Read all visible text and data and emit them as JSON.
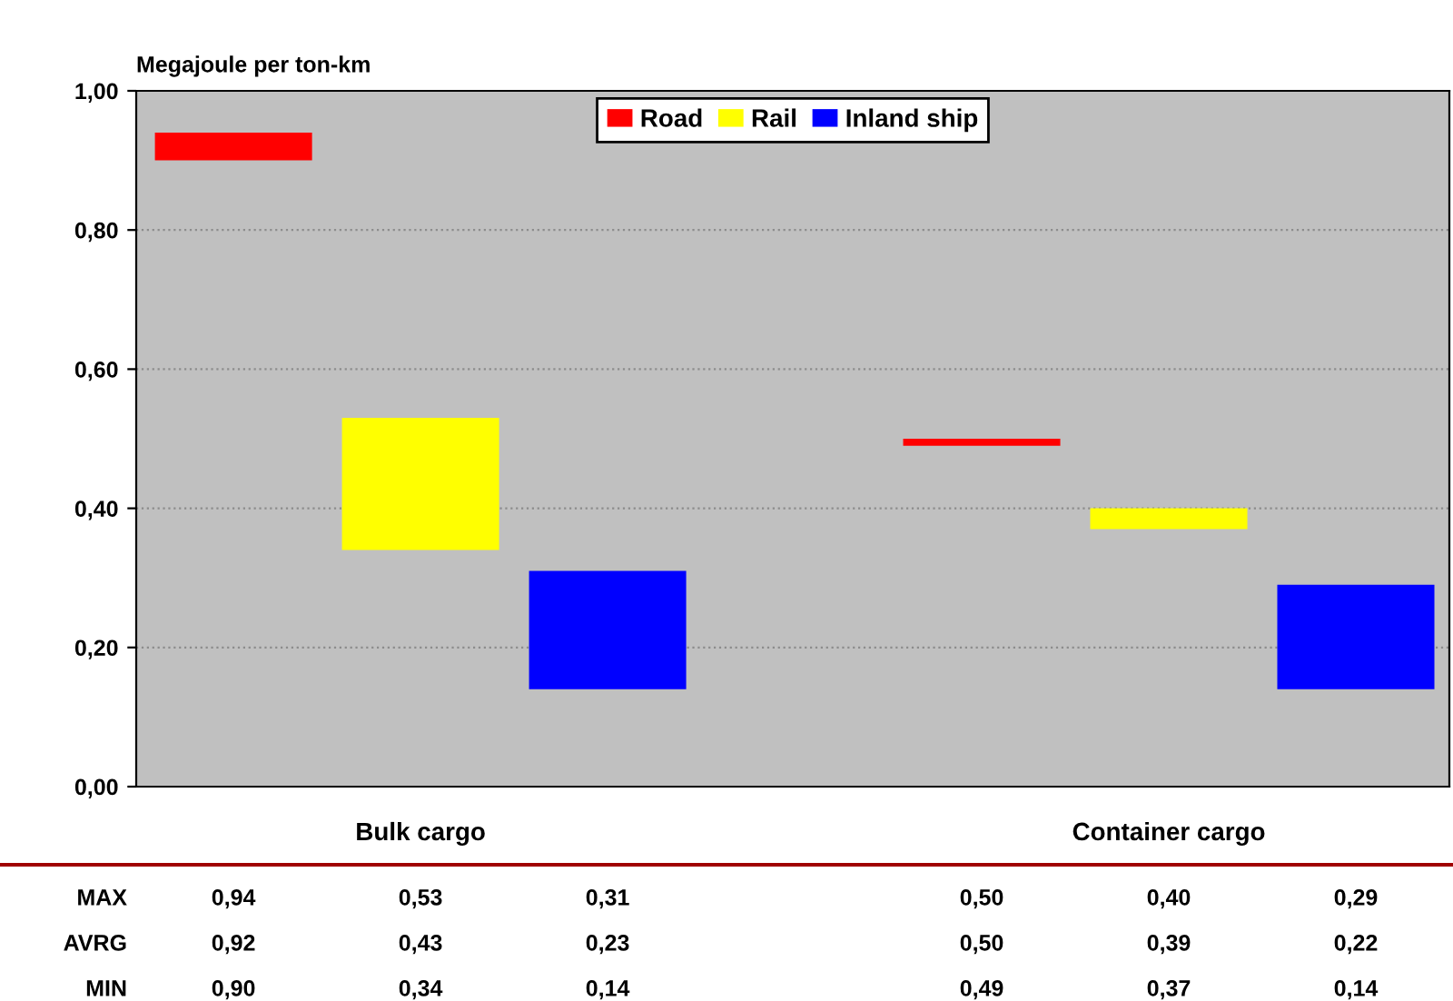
{
  "chart_data": {
    "type": "bar",
    "ylabel": "Megajoule per ton-km",
    "categories": [
      "Bulk cargo",
      "Container cargo"
    ],
    "series": [
      {
        "name": "Road",
        "color": "#ff0000",
        "base": [
          0.9,
          0.49
        ],
        "values": [
          0.04,
          0.01
        ]
      },
      {
        "name": "Rail",
        "color": "#ffff00",
        "base": [
          0.34,
          0.37
        ],
        "values": [
          0.19,
          0.03
        ]
      },
      {
        "name": "Inland ship",
        "color": "#0000ff",
        "base": [
          0.14,
          0.14
        ],
        "values": [
          0.17,
          0.15
        ]
      }
    ],
    "ylim": [
      0,
      1
    ],
    "yticks": [
      {
        "value": 0,
        "label": "0,00"
      },
      {
        "value": 0.2,
        "label": "0,20"
      },
      {
        "value": 0.4,
        "label": "0,40"
      },
      {
        "value": 0.6,
        "label": "0,60"
      },
      {
        "value": 0.8,
        "label": "0,80"
      },
      {
        "value": 1,
        "label": "1,00"
      }
    ],
    "grid": "y",
    "legend": "top",
    "annotations": [
      "MAX",
      "0,94",
      "0,53",
      "0,31",
      "0,50",
      "0,40",
      "0,29",
      "AVRG",
      "0,92",
      "0,43",
      "0,23",
      "0,50",
      "0,39",
      "0,22",
      "MIN",
      "0,90",
      "0,34",
      "0,14",
      "0,49",
      "0,37",
      "0,14"
    ]
  }
}
